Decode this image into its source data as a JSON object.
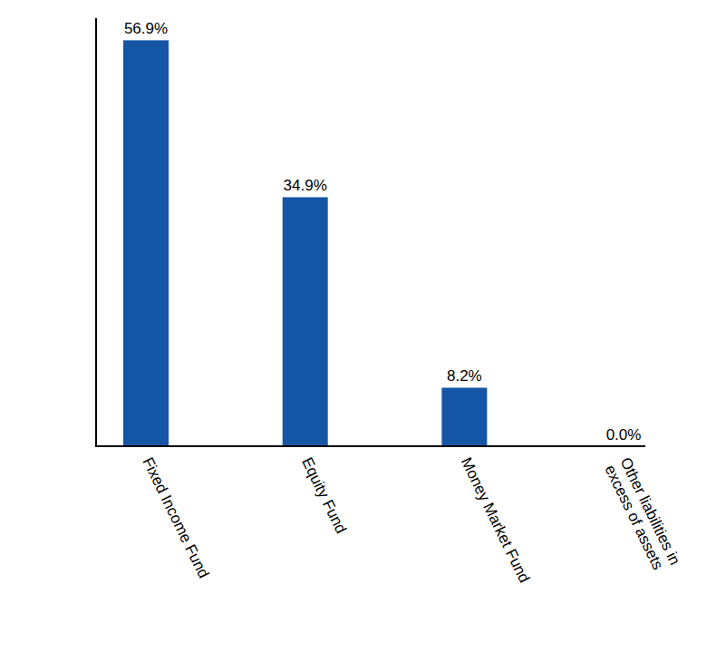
{
  "chart_data": {
    "type": "bar",
    "categories": [
      "Fixed Income Fund",
      "Equity Fund",
      "Money Market Fund",
      "Other liabilities in excess of assets"
    ],
    "values": [
      56.9,
      34.9,
      8.2,
      0.0
    ],
    "value_labels": [
      "56.9%",
      "34.9%",
      "8.2%",
      "0.0%"
    ],
    "color": "#1555a6",
    "ylim": [
      0,
      60
    ],
    "grid": false,
    "data_labels": true,
    "tick_labels": "x"
  }
}
